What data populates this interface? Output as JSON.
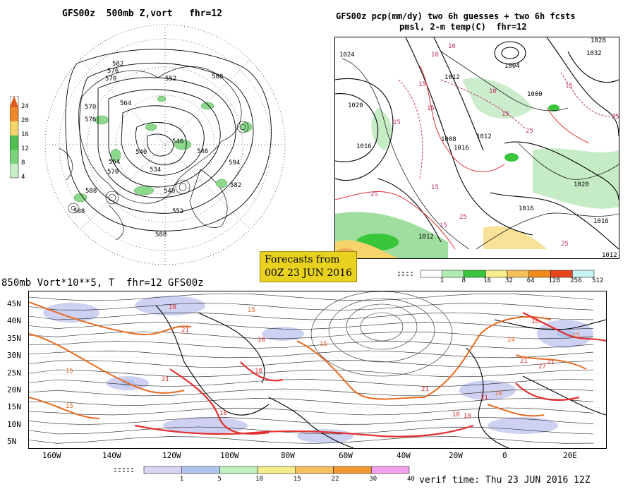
{
  "polar": {
    "title": "GFS00z  500mb Z,vort   fhr=12",
    "legend_values": [
      "24",
      "20",
      "16",
      "12",
      "8",
      "4"
    ],
    "contour_labels": [
      "582",
      "576",
      "570",
      "564",
      "570",
      "576",
      "552",
      "546",
      "540",
      "546",
      "564",
      "570",
      "588",
      "588",
      "594",
      "582",
      "588",
      "588",
      "552",
      "540",
      "534"
    ]
  },
  "na": {
    "title_line1": "GFS00z pcp(mm/dy) two 6h guesses + two 6h fcsts",
    "title_line2": "pmsl, 2-m temp(C)  fhr=12",
    "pressure_labels": [
      "1024",
      "1020",
      "1016",
      "1012",
      "1008",
      "1004",
      "1000",
      "1012",
      "1016",
      "1020",
      "1016",
      "1012",
      "1028",
      "1032",
      "1016",
      "1012"
    ],
    "temp_labels": [
      "10",
      "15",
      "15",
      "10",
      "15",
      "15",
      "25",
      "15",
      "25",
      "25",
      "15",
      "25",
      "15",
      "25",
      "10"
    ],
    "colorbar": {
      "labels": [
        "1",
        "8",
        "16",
        "32",
        "64",
        "128",
        "256",
        "512"
      ],
      "colors": [
        "#ffffff",
        "#b0ecb0",
        "#3ac63a",
        "#f8ed8c",
        "#f5c05a",
        "#f08a1c",
        "#e8451c",
        "#c8f4f4"
      ]
    }
  },
  "banner": {
    "line1": "Forecasts from",
    "line2": "00Z 23 JUN 2016"
  },
  "atl": {
    "title": "850mb Vort*10**5, T  fhr=12 GFS00z",
    "lat_labels": [
      "45N",
      "40N",
      "35N",
      "30N",
      "25N",
      "20N",
      "15N",
      "10N",
      "5N"
    ],
    "lon_labels": [
      "160W",
      "140W",
      "120W",
      "100W",
      "80W",
      "60W",
      "40W",
      "20W",
      "0",
      "20E"
    ],
    "temp_labels": [
      "18",
      "21",
      "15",
      "18",
      "15",
      "18",
      "15",
      "21",
      "21",
      "18",
      "18",
      "18",
      "21",
      "24",
      "21",
      "18",
      "15",
      "18",
      "27",
      "21",
      "15"
    ],
    "colorbar": {
      "labels": [
        "1",
        "5",
        "10",
        "15",
        "22",
        "30",
        "40"
      ],
      "colors": [
        "#d8d4f4",
        "#b0c4ee",
        "#bff0bf",
        "#f5ec8c",
        "#f5c060",
        "#f09a30",
        "#f4a0f0"
      ]
    }
  },
  "verif": "verif time: Thu 23 JUN 2016 12Z",
  "colors": {
    "temp_contour": "#e86a20",
    "temp_hot": "#e33030",
    "vort_fill": "#c9cdf1",
    "precip_green": "#8ed88e",
    "sea": "#ffffff"
  }
}
